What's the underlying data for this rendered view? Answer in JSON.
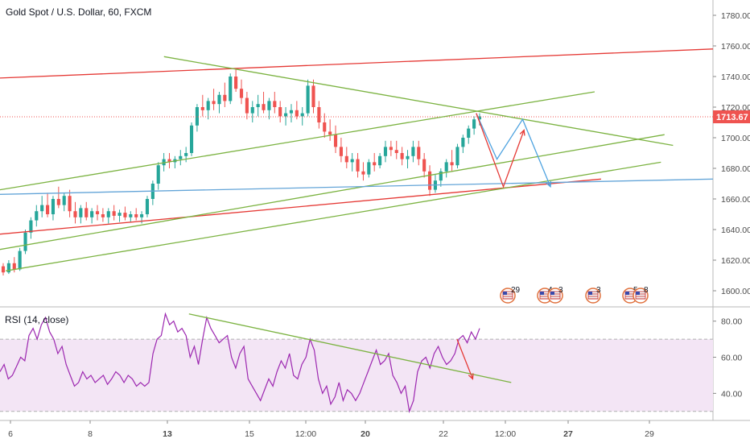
{
  "chart_data": [
    {
      "type": "candlestick",
      "title": "Gold Spot / U.S. Dollar, 60, FXCM",
      "ylim": [
        1590,
        1790
      ],
      "yticks": [
        1600,
        1620,
        1640,
        1660,
        1680,
        1700,
        1720,
        1740,
        1760,
        1780
      ],
      "xticks": [
        "6",
        "8",
        "13",
        "15",
        "12:00",
        "20",
        "22",
        "12:00",
        "27",
        "29"
      ],
      "current_price": "1713.67",
      "colors": {
        "up": "#26a69a",
        "down": "#ef5350",
        "last_price": "#ef5350",
        "grid": "#e6e6e6"
      },
      "candles": [
        [
          1616,
          1618,
          1610,
          1612
        ],
        [
          1612,
          1620,
          1611,
          1618
        ],
        [
          1618,
          1622,
          1612,
          1614
        ],
        [
          1614,
          1628,
          1613,
          1626
        ],
        [
          1626,
          1640,
          1624,
          1638
        ],
        [
          1638,
          1648,
          1634,
          1646
        ],
        [
          1646,
          1656,
          1642,
          1652
        ],
        [
          1652,
          1662,
          1648,
          1656
        ],
        [
          1656,
          1664,
          1648,
          1650
        ],
        [
          1650,
          1662,
          1646,
          1660
        ],
        [
          1660,
          1668,
          1654,
          1656
        ],
        [
          1656,
          1664,
          1652,
          1662
        ],
        [
          1662,
          1666,
          1648,
          1652
        ],
        [
          1652,
          1658,
          1644,
          1648
        ],
        [
          1648,
          1656,
          1644,
          1654
        ],
        [
          1654,
          1658,
          1646,
          1648
        ],
        [
          1648,
          1654,
          1644,
          1652
        ],
        [
          1652,
          1656,
          1646,
          1650
        ],
        [
          1650,
          1654,
          1645,
          1648
        ],
        [
          1648,
          1654,
          1644,
          1652
        ],
        [
          1652,
          1656,
          1646,
          1649
        ],
        [
          1649,
          1653,
          1645,
          1651
        ],
        [
          1651,
          1655,
          1646,
          1648
        ],
        [
          1648,
          1652,
          1645,
          1650
        ],
        [
          1650,
          1654,
          1646,
          1648
        ],
        [
          1648,
          1652,
          1644,
          1650
        ],
        [
          1650,
          1662,
          1648,
          1660
        ],
        [
          1660,
          1672,
          1656,
          1670
        ],
        [
          1670,
          1684,
          1666,
          1682
        ],
        [
          1682,
          1690,
          1678,
          1686
        ],
        [
          1686,
          1690,
          1680,
          1684
        ],
        [
          1684,
          1688,
          1680,
          1686
        ],
        [
          1686,
          1692,
          1682,
          1688
        ],
        [
          1688,
          1694,
          1684,
          1690
        ],
        [
          1690,
          1710,
          1688,
          1708
        ],
        [
          1708,
          1722,
          1704,
          1720
        ],
        [
          1720,
          1728,
          1714,
          1718
        ],
        [
          1718,
          1726,
          1712,
          1724
        ],
        [
          1724,
          1732,
          1718,
          1722
        ],
        [
          1722,
          1730,
          1716,
          1728
        ],
        [
          1728,
          1736,
          1720,
          1724
        ],
        [
          1724,
          1742,
          1722,
          1740
        ],
        [
          1740,
          1745,
          1730,
          1732
        ],
        [
          1732,
          1738,
          1722,
          1726
        ],
        [
          1726,
          1730,
          1712,
          1716
        ],
        [
          1716,
          1724,
          1710,
          1720
        ],
        [
          1720,
          1728,
          1714,
          1722
        ],
        [
          1722,
          1730,
          1716,
          1718
        ],
        [
          1718,
          1726,
          1712,
          1724
        ],
        [
          1724,
          1730,
          1716,
          1720
        ],
        [
          1720,
          1724,
          1710,
          1714
        ],
        [
          1714,
          1720,
          1708,
          1716
        ],
        [
          1716,
          1722,
          1710,
          1718
        ],
        [
          1718,
          1724,
          1712,
          1714
        ],
        [
          1714,
          1720,
          1708,
          1716
        ],
        [
          1716,
          1738,
          1714,
          1734
        ],
        [
          1734,
          1738,
          1716,
          1720
        ],
        [
          1720,
          1724,
          1706,
          1710
        ],
        [
          1710,
          1716,
          1700,
          1704
        ],
        [
          1704,
          1712,
          1698,
          1702
        ],
        [
          1702,
          1708,
          1690,
          1694
        ],
        [
          1694,
          1700,
          1684,
          1688
        ],
        [
          1688,
          1694,
          1680,
          1684
        ],
        [
          1684,
          1690,
          1678,
          1686
        ],
        [
          1686,
          1690,
          1674,
          1678
        ],
        [
          1678,
          1684,
          1672,
          1676
        ],
        [
          1676,
          1686,
          1674,
          1684
        ],
        [
          1684,
          1690,
          1678,
          1682
        ],
        [
          1682,
          1690,
          1680,
          1688
        ],
        [
          1688,
          1698,
          1684,
          1694
        ],
        [
          1694,
          1698,
          1688,
          1692
        ],
        [
          1692,
          1698,
          1686,
          1690
        ],
        [
          1690,
          1694,
          1682,
          1686
        ],
        [
          1686,
          1692,
          1680,
          1688
        ],
        [
          1688,
          1698,
          1684,
          1694
        ],
        [
          1694,
          1698,
          1682,
          1686
        ],
        [
          1686,
          1690,
          1674,
          1678
        ],
        [
          1678,
          1682,
          1662,
          1666
        ],
        [
          1666,
          1676,
          1664,
          1672
        ],
        [
          1672,
          1680,
          1668,
          1678
        ],
        [
          1678,
          1686,
          1674,
          1684
        ],
        [
          1684,
          1692,
          1678,
          1682
        ],
        [
          1682,
          1696,
          1680,
          1694
        ],
        [
          1694,
          1702,
          1690,
          1700
        ],
        [
          1700,
          1708,
          1696,
          1706
        ],
        [
          1706,
          1714,
          1702,
          1712
        ],
        [
          1712,
          1716,
          1708,
          1714
        ]
      ],
      "trendlines": [
        {
          "color": "#e53935",
          "from": [
            0.0,
            1739
          ],
          "to": [
            1.0,
            1758
          ]
        },
        {
          "color": "#e53935",
          "from": [
            0.0,
            1637
          ],
          "to": [
            0.843,
            1673
          ]
        },
        {
          "color": "#7cb342",
          "from": [
            0.0,
            1627
          ],
          "to": [
            0.932,
            1702
          ]
        },
        {
          "color": "#7cb342",
          "from": [
            0.0,
            1666
          ],
          "to": [
            0.834,
            1730
          ]
        },
        {
          "color": "#7cb342",
          "from": [
            0.008,
            1613
          ],
          "to": [
            0.927,
            1684
          ]
        },
        {
          "color": "#7cb342",
          "from": [
            0.23,
            1753
          ],
          "to": [
            0.944,
            1695
          ]
        },
        {
          "color": "#64a5d8",
          "from": [
            0.0,
            1663
          ],
          "to": [
            1.0,
            1673
          ]
        }
      ],
      "projections": [
        {
          "color": "#4fa3e0",
          "points": [
            [
              0.668,
              1716
            ],
            [
              0.697,
              1686
            ],
            [
              0.733,
              1712
            ],
            [
              0.772,
              1668
            ]
          ]
        },
        {
          "color": "#e53935",
          "points": [
            [
              0.668,
              1716
            ],
            [
              0.706,
              1668
            ],
            [
              0.735,
              1705
            ]
          ]
        }
      ],
      "events": [
        {
          "label": "29",
          "flag": "us"
        },
        {
          "label": "4",
          "flag": "us"
        },
        {
          "label": "3",
          "flag": "us"
        },
        {
          "label": "3",
          "flag": "us"
        },
        {
          "label": "5",
          "flag": "us"
        },
        {
          "label": "8",
          "flag": "us"
        }
      ]
    },
    {
      "type": "line",
      "title": "RSI (14, close)",
      "ylim": [
        25,
        87
      ],
      "yticks": [
        40,
        60,
        80
      ],
      "band": [
        30,
        70
      ],
      "series": [
        {
          "name": "RSI (14, close)",
          "color": "#9c27b0",
          "values": [
            52,
            56,
            48,
            50,
            55,
            60,
            58,
            72,
            76,
            70,
            78,
            82,
            74,
            70,
            62,
            66,
            56,
            50,
            44,
            46,
            52,
            48,
            50,
            46,
            48,
            50,
            45,
            48,
            52,
            50,
            46,
            50,
            48,
            44,
            46,
            44,
            46,
            62,
            70,
            72,
            84,
            78,
            80,
            74,
            76,
            72,
            60,
            66,
            56,
            70,
            82,
            76,
            72,
            68,
            70,
            72,
            60,
            54,
            62,
            66,
            48,
            44,
            40,
            36,
            42,
            48,
            44,
            52,
            58,
            54,
            62,
            50,
            48,
            56,
            60,
            70,
            64,
            48,
            40,
            44,
            34,
            38,
            46,
            36,
            42,
            40,
            36,
            40,
            46,
            52,
            58,
            64,
            56,
            58,
            62,
            50,
            46,
            40,
            44,
            30,
            36,
            52,
            58,
            60,
            54,
            62,
            66,
            60,
            56,
            58,
            62,
            70,
            72,
            68,
            74,
            70,
            76
          ]
        }
      ],
      "trendlines": [
        {
          "color": "#7cb342",
          "from": [
            0.265,
            84
          ],
          "to": [
            0.717,
            46
          ]
        }
      ],
      "projections": [
        {
          "color": "#e53935",
          "points": [
            [
              0.641,
              70
            ],
            [
              0.663,
              48
            ]
          ]
        }
      ],
      "colors": {
        "band_fill": "#f3e5f5",
        "band_edge": "#b0b0b0"
      }
    }
  ]
}
